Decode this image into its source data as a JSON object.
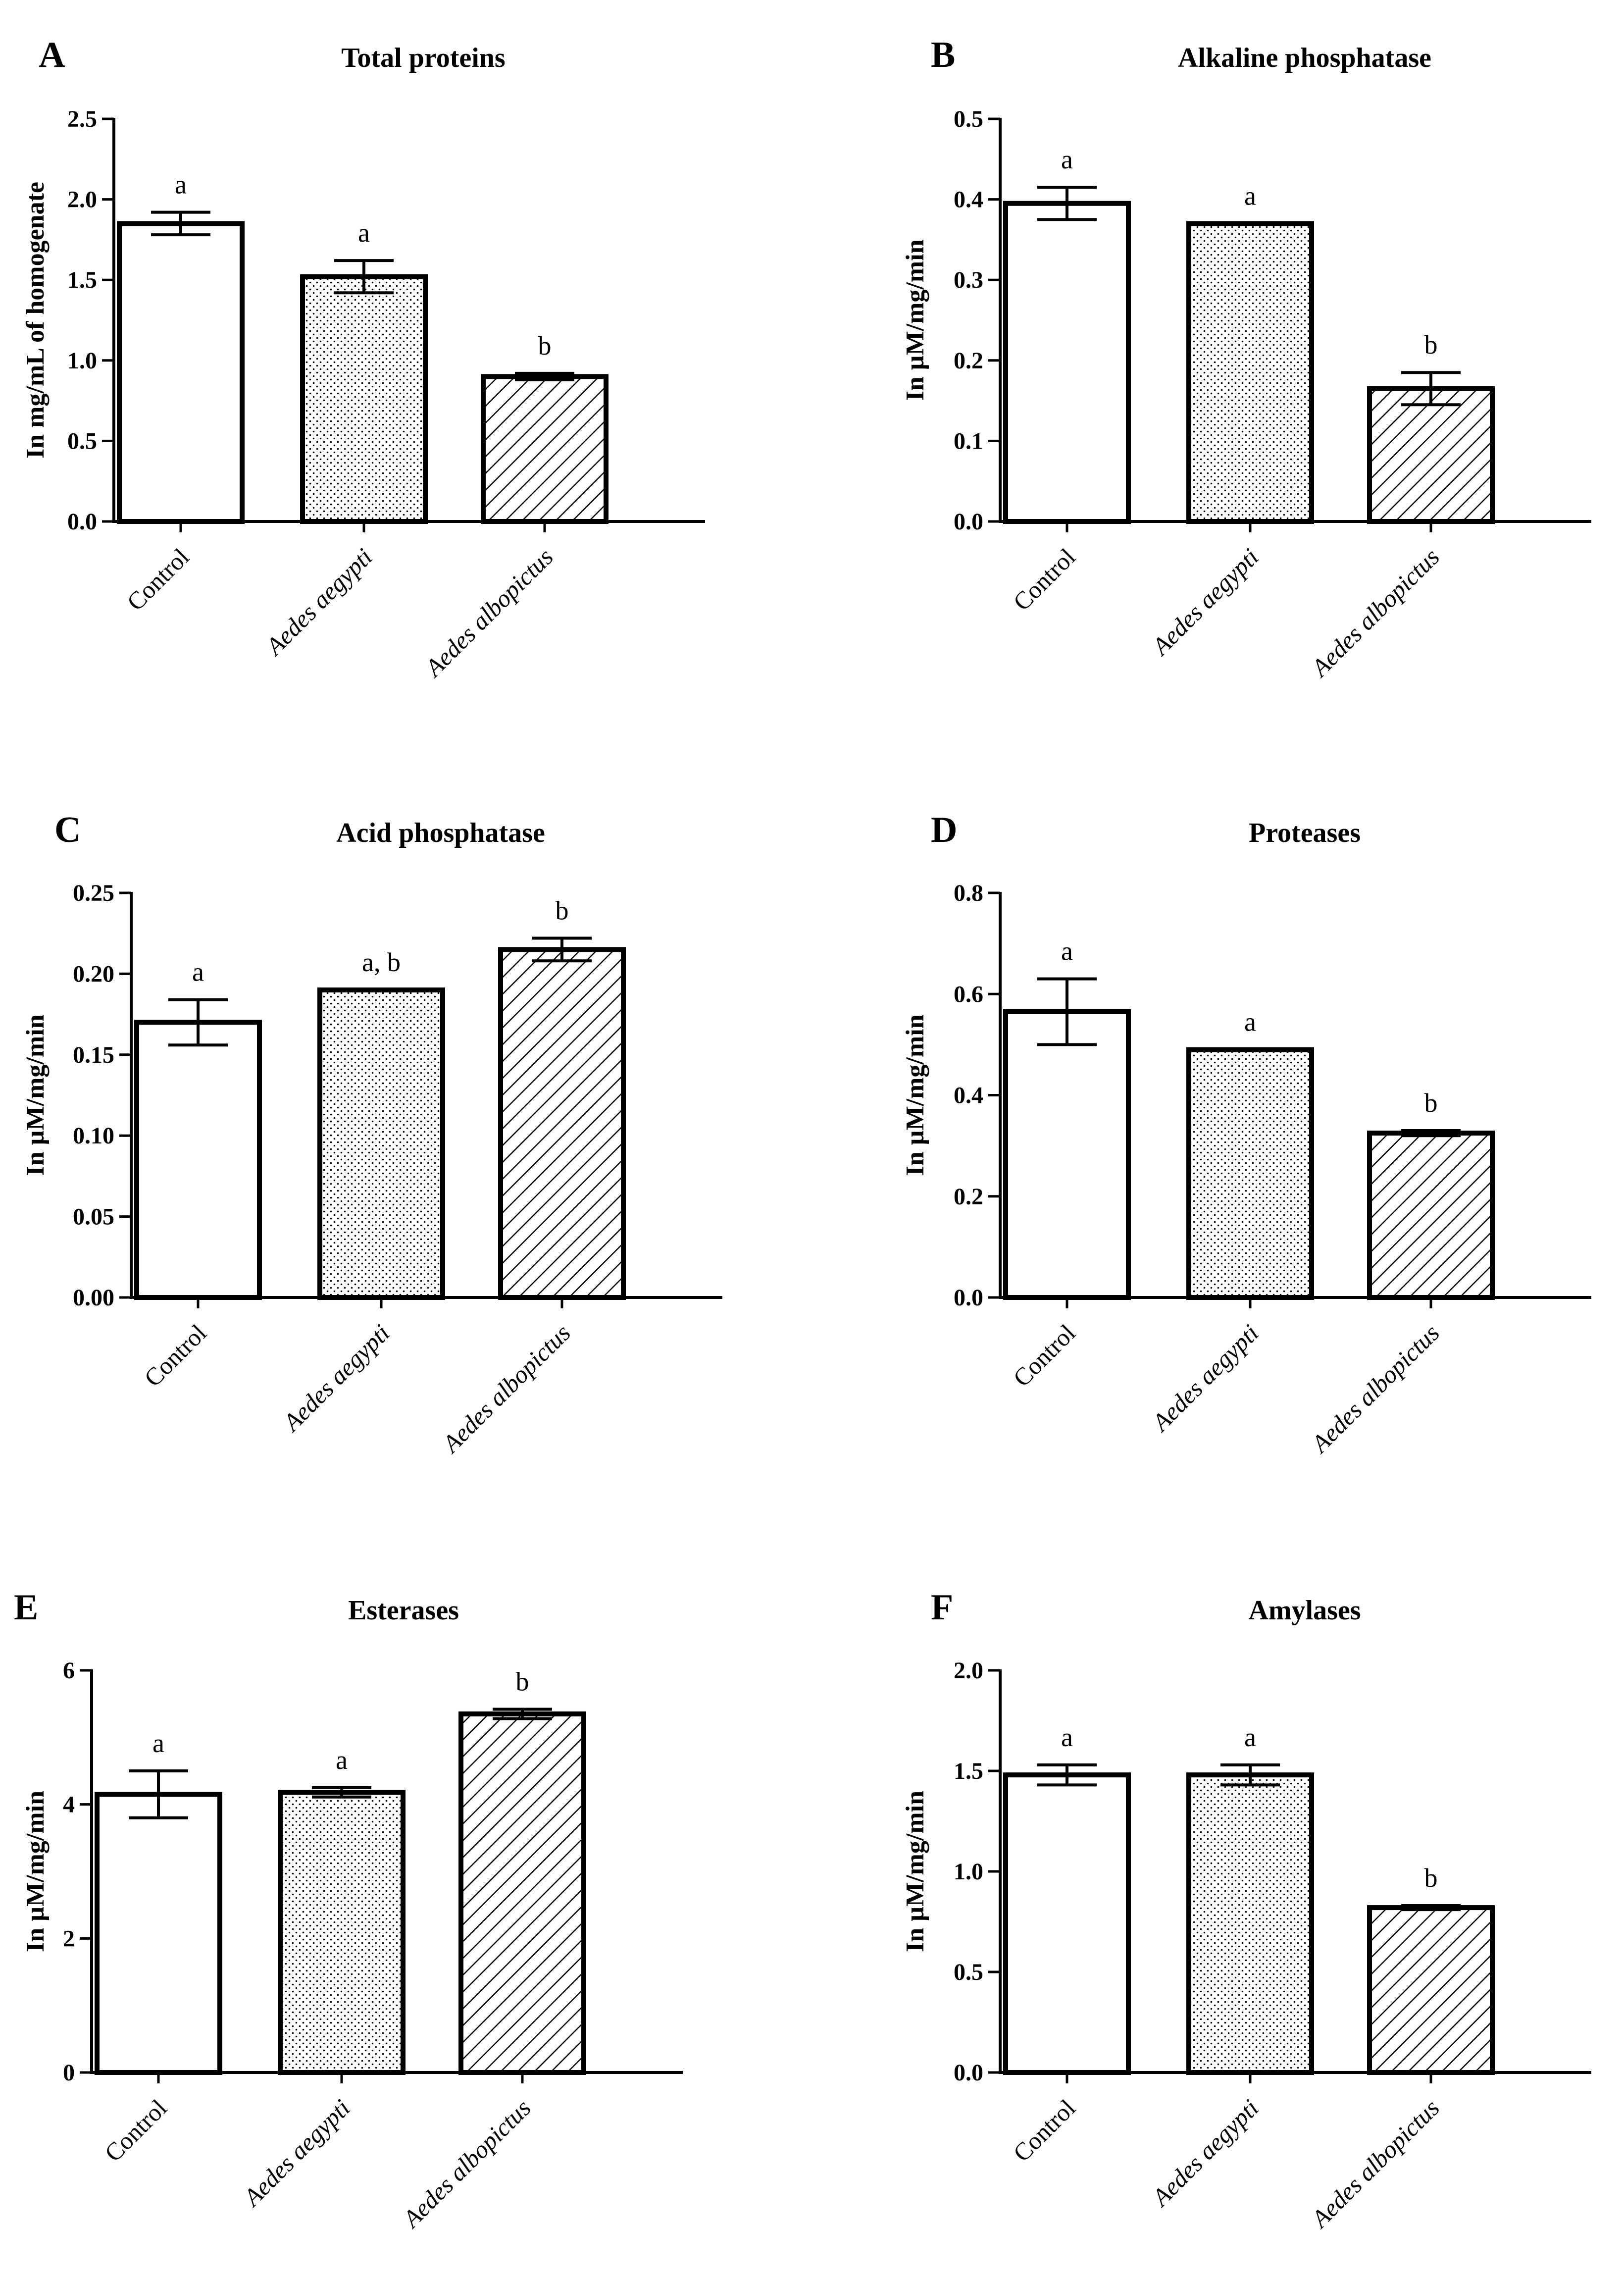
{
  "chart_data": [
    {
      "panel_label": "A",
      "type": "bar",
      "title": "Total proteins",
      "ylabel": "In mg/mL of homogenate",
      "categories": [
        "Control",
        "Aedes aegypti",
        "Aedes albopictus"
      ],
      "italic_categories": [
        false,
        true,
        true
      ],
      "values": [
        1.85,
        1.52,
        0.9
      ],
      "errors": [
        0.07,
        0.1,
        0.02
      ],
      "significance": [
        "a",
        "a",
        "b"
      ],
      "patterns": [
        "none",
        "dots",
        "hatch"
      ],
      "ylim": [
        0,
        2.5
      ],
      "yticks": [
        "0.0",
        "0.5",
        "1.0",
        "1.5",
        "2.0",
        "2.5"
      ]
    },
    {
      "panel_label": "B",
      "type": "bar",
      "title": "Alkaline phosphatase",
      "ylabel": "In µM/mg/min",
      "categories": [
        "Control",
        "Aedes aegypti",
        "Aedes albopictus"
      ],
      "italic_categories": [
        false,
        true,
        true
      ],
      "values": [
        0.395,
        0.37,
        0.165
      ],
      "errors": [
        0.02,
        0,
        0.02
      ],
      "significance": [
        "a",
        "a",
        "b"
      ],
      "patterns": [
        "none",
        "dots",
        "hatch"
      ],
      "ylim": [
        0,
        0.5
      ],
      "yticks": [
        "0.0",
        "0.1",
        "0.2",
        "0.3",
        "0.4",
        "0.5"
      ]
    },
    {
      "panel_label": "C",
      "type": "bar",
      "title": "Acid phosphatase",
      "ylabel": "In µM/mg/min",
      "categories": [
        "Control",
        "Aedes aegypti",
        "Aedes albopictus"
      ],
      "italic_categories": [
        false,
        true,
        true
      ],
      "values": [
        0.17,
        0.19,
        0.215
      ],
      "errors": [
        0.014,
        0,
        0.007
      ],
      "significance": [
        "a",
        "a, b",
        "b"
      ],
      "patterns": [
        "none",
        "dots",
        "hatch"
      ],
      "ylim": [
        0,
        0.25
      ],
      "yticks": [
        "0.00",
        "0.05",
        "0.10",
        "0.15",
        "0.20",
        "0.25"
      ]
    },
    {
      "panel_label": "D",
      "type": "bar",
      "title": "Proteases",
      "ylabel": "In µM/mg/min",
      "categories": [
        "Control",
        "Aedes aegypti",
        "Aedes albopictus"
      ],
      "italic_categories": [
        false,
        true,
        true
      ],
      "values": [
        0.565,
        0.49,
        0.325
      ],
      "errors": [
        0.065,
        0,
        0.005
      ],
      "significance": [
        "a",
        "a",
        "b"
      ],
      "patterns": [
        "none",
        "dots",
        "hatch"
      ],
      "ylim": [
        0,
        0.8
      ],
      "yticks": [
        "0.0",
        "0.2",
        "0.4",
        "0.6",
        "0.8"
      ]
    },
    {
      "panel_label": "E",
      "type": "bar",
      "title": "Esterases",
      "ylabel": "In µM/mg/min",
      "categories": [
        "Control",
        "Aedes aegypti",
        "Aedes albopictus"
      ],
      "italic_categories": [
        false,
        true,
        true
      ],
      "values": [
        4.15,
        4.18,
        5.35
      ],
      "errors": [
        0.35,
        0.07,
        0.07
      ],
      "significance": [
        "a",
        "a",
        "b"
      ],
      "patterns": [
        "none",
        "dots",
        "hatch"
      ],
      "ylim": [
        0,
        6
      ],
      "yticks": [
        "0",
        "2",
        "4",
        "6"
      ]
    },
    {
      "panel_label": "F",
      "type": "bar",
      "title": "Amylases",
      "ylabel": "In µM/mg/min",
      "categories": [
        "Control",
        "Aedes aegypti",
        "Aedes albopictus"
      ],
      "italic_categories": [
        false,
        true,
        true
      ],
      "values": [
        1.48,
        1.48,
        0.82
      ],
      "errors": [
        0.05,
        0.05,
        0.01
      ],
      "significance": [
        "a",
        "a",
        "b"
      ],
      "patterns": [
        "none",
        "dots",
        "hatch"
      ],
      "ylim": [
        0,
        2.0
      ],
      "yticks": [
        "0.0",
        "0.5",
        "1.0",
        "1.5",
        "2.0"
      ]
    }
  ]
}
